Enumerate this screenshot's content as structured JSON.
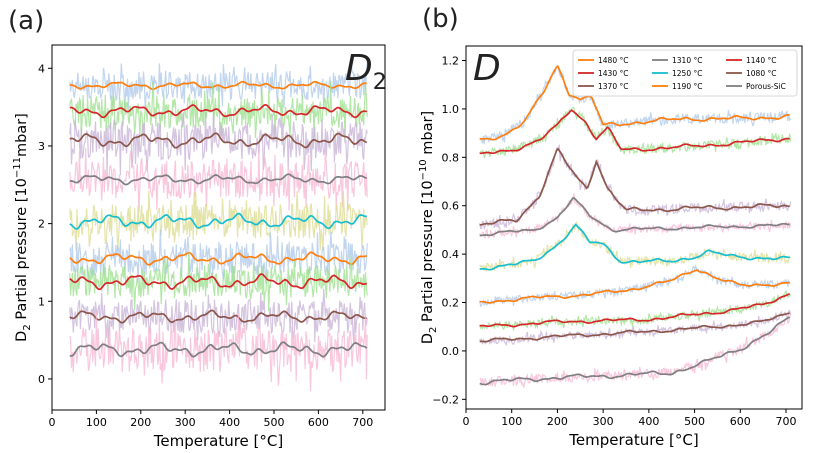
{
  "figure": {
    "label_a": "(a)",
    "label_b": "(b)"
  },
  "chart_data": [
    {
      "type": "line",
      "panel": "(a)",
      "annotation": "D2",
      "xlabel": "Temperature [°C]",
      "ylabel": "D2 Partial pressure [10^-11 mbar]",
      "ylabel_parts": {
        "pre": "D",
        "sub": "2",
        "mid": " Partial pressure [10",
        "sup": "−11",
        "post": "mbar]"
      },
      "xlim": [
        0,
        750
      ],
      "ylim": [
        -0.4,
        4.3
      ],
      "xticks": [
        0,
        100,
        200,
        300,
        400,
        500,
        600,
        700
      ],
      "yticks": [
        0,
        1,
        2,
        3,
        4
      ],
      "grid": false,
      "x_start": 40,
      "x_end": 710,
      "series": [
        {
          "name": "1480 °C",
          "color": "#ff7f0e",
          "raw_color": "#aec7e8",
          "level": 3.78,
          "noise": 0.18,
          "wobble": 0.03
        },
        {
          "name": "1430 °C",
          "color": "#d62728",
          "raw_color": "#98df8a",
          "level": 3.45,
          "noise": 0.22,
          "wobble": 0.05
        },
        {
          "name": "1370 °C",
          "color": "#8c564b",
          "raw_color": "#c5b0d5",
          "level": 3.07,
          "noise": 0.25,
          "wobble": 0.06
        },
        {
          "name": "1310 °C",
          "color": "#7f7f7f",
          "raw_color": "#f7b6d2",
          "level": 2.57,
          "noise": 0.25,
          "wobble": 0.04
        },
        {
          "name": "1250 °C",
          "color": "#17becf",
          "raw_color": "#dbdb8d",
          "level": 2.03,
          "noise": 0.22,
          "wobble": 0.06
        },
        {
          "name": "1190 °C",
          "color": "#ff7f0e",
          "raw_color": "#aec7e8",
          "level": 1.55,
          "noise": 0.22,
          "wobble": 0.05
        },
        {
          "name": "1140 °C",
          "color": "#d62728",
          "raw_color": "#98df8a",
          "level": 1.25,
          "noise": 0.22,
          "wobble": 0.06
        },
        {
          "name": "1080 °C",
          "color": "#8c564b",
          "raw_color": "#c5b0d5",
          "level": 0.8,
          "noise": 0.22,
          "wobble": 0.05
        },
        {
          "name": "Porous-SiC",
          "color": "#7f7f7f",
          "raw_color": "#f7b6d2",
          "level": 0.38,
          "noise": 0.3,
          "wobble": 0.06
        }
      ]
    },
    {
      "type": "line",
      "panel": "(b)",
      "annotation": "D",
      "xlabel": "Temperature [°C]",
      "ylabel": "D2 Partial pressure [10^-10 mbar]",
      "ylabel_parts": {
        "pre": "D",
        "sub": "2",
        "mid": " Partial pressure [10",
        "sup": "−10",
        "post": " mbar]"
      },
      "xlim": [
        0,
        735
      ],
      "ylim": [
        -0.24,
        1.26
      ],
      "xticks": [
        0,
        100,
        200,
        300,
        400,
        500,
        600,
        700
      ],
      "yticks": [
        -0.2,
        0.0,
        0.2,
        0.4,
        0.6,
        0.8,
        1.0,
        1.2
      ],
      "ytick_labels": [
        "−0.2",
        "0.0",
        "0.2",
        "0.4",
        "0.6",
        "0.8",
        "1.0",
        "1.2"
      ],
      "grid": false,
      "x_start": 30,
      "x_end": 710,
      "legend": {
        "position": "top-right",
        "columns": 3,
        "entries": [
          {
            "name": "1480 °C",
            "color": "#ff7f0e"
          },
          {
            "name": "1430 °C",
            "color": "#d62728"
          },
          {
            "name": "1370 °C",
            "color": "#8c564b"
          },
          {
            "name": "1310 °C",
            "color": "#7f7f7f"
          },
          {
            "name": "1250 °C",
            "color": "#17becf"
          },
          {
            "name": "1190 °C",
            "color": "#ff7f0e"
          },
          {
            "name": "1140 °C",
            "color": "#d62728"
          },
          {
            "name": "1080 °C",
            "color": "#8c564b"
          },
          {
            "name": "Porous-SiC",
            "color": "#7f7f7f"
          }
        ]
      },
      "series": [
        {
          "name": "1480 °C",
          "color": "#ff7f0e",
          "raw_color": "#aec7e8",
          "noise": 0.02,
          "points": [
            [
              30,
              0.87
            ],
            [
              80,
              0.89
            ],
            [
              130,
              0.95
            ],
            [
              170,
              1.07
            ],
            [
              200,
              1.18
            ],
            [
              225,
              1.07
            ],
            [
              250,
              1.04
            ],
            [
              275,
              1.05
            ],
            [
              300,
              0.93
            ],
            [
              400,
              0.95
            ],
            [
              500,
              0.96
            ],
            [
              600,
              0.96
            ],
            [
              710,
              0.97
            ]
          ]
        },
        {
          "name": "1430 °C",
          "color": "#d62728",
          "raw_color": "#98df8a",
          "noise": 0.018,
          "points": [
            [
              30,
              0.81
            ],
            [
              100,
              0.83
            ],
            [
              160,
              0.87
            ],
            [
              200,
              0.93
            ],
            [
              230,
              1.0
            ],
            [
              260,
              0.95
            ],
            [
              285,
              0.88
            ],
            [
              310,
              0.92
            ],
            [
              340,
              0.83
            ],
            [
              450,
              0.84
            ],
            [
              600,
              0.86
            ],
            [
              710,
              0.88
            ]
          ]
        },
        {
          "name": "1370 °C",
          "color": "#8c564b",
          "raw_color": "#c5b0d5",
          "noise": 0.02,
          "points": [
            [
              30,
              0.52
            ],
            [
              110,
              0.54
            ],
            [
              160,
              0.64
            ],
            [
              200,
              0.83
            ],
            [
              240,
              0.72
            ],
            [
              265,
              0.67
            ],
            [
              285,
              0.79
            ],
            [
              310,
              0.67
            ],
            [
              350,
              0.58
            ],
            [
              500,
              0.59
            ],
            [
              710,
              0.6
            ]
          ]
        },
        {
          "name": "1310 °C",
          "color": "#7f7f7f",
          "raw_color": "#f7b6d2",
          "noise": 0.015,
          "points": [
            [
              30,
              0.48
            ],
            [
              150,
              0.5
            ],
            [
              200,
              0.55
            ],
            [
              235,
              0.63
            ],
            [
              270,
              0.56
            ],
            [
              320,
              0.5
            ],
            [
              500,
              0.51
            ],
            [
              710,
              0.52
            ]
          ]
        },
        {
          "name": "1250 °C",
          "color": "#17becf",
          "raw_color": "#dbdb8d",
          "noise": 0.018,
          "points": [
            [
              30,
              0.34
            ],
            [
              150,
              0.37
            ],
            [
              200,
              0.44
            ],
            [
              240,
              0.52
            ],
            [
              270,
              0.45
            ],
            [
              300,
              0.44
            ],
            [
              340,
              0.37
            ],
            [
              450,
              0.37
            ],
            [
              500,
              0.39
            ],
            [
              530,
              0.41
            ],
            [
              580,
              0.39
            ],
            [
              710,
              0.38
            ]
          ]
        },
        {
          "name": "1190 °C",
          "color": "#ff7f0e",
          "raw_color": "#aec7e8",
          "noise": 0.015,
          "points": [
            [
              30,
              0.2
            ],
            [
              150,
              0.22
            ],
            [
              250,
              0.23
            ],
            [
              350,
              0.25
            ],
            [
              450,
              0.29
            ],
            [
              505,
              0.34
            ],
            [
              550,
              0.3
            ],
            [
              600,
              0.27
            ],
            [
              710,
              0.28
            ]
          ]
        },
        {
          "name": "1140 °C",
          "color": "#d62728",
          "raw_color": "#98df8a",
          "noise": 0.015,
          "points": [
            [
              30,
              0.1
            ],
            [
              200,
              0.12
            ],
            [
              400,
              0.13
            ],
            [
              550,
              0.16
            ],
            [
              650,
              0.19
            ],
            [
              710,
              0.24
            ]
          ]
        },
        {
          "name": "1080 °C",
          "color": "#8c564b",
          "raw_color": "#c5b0d5",
          "noise": 0.015,
          "points": [
            [
              30,
              0.04
            ],
            [
              200,
              0.06
            ],
            [
              400,
              0.08
            ],
            [
              550,
              0.1
            ],
            [
              650,
              0.12
            ],
            [
              710,
              0.16
            ]
          ]
        },
        {
          "name": "Porous-SiC",
          "color": "#7f7f7f",
          "raw_color": "#f7b6d2",
          "noise": 0.02,
          "points": [
            [
              30,
              -0.13
            ],
            [
              200,
              -0.11
            ],
            [
              350,
              -0.1
            ],
            [
              450,
              -0.09
            ],
            [
              520,
              -0.05
            ],
            [
              600,
              0.01
            ],
            [
              660,
              0.07
            ],
            [
              710,
              0.14
            ]
          ]
        }
      ]
    }
  ]
}
